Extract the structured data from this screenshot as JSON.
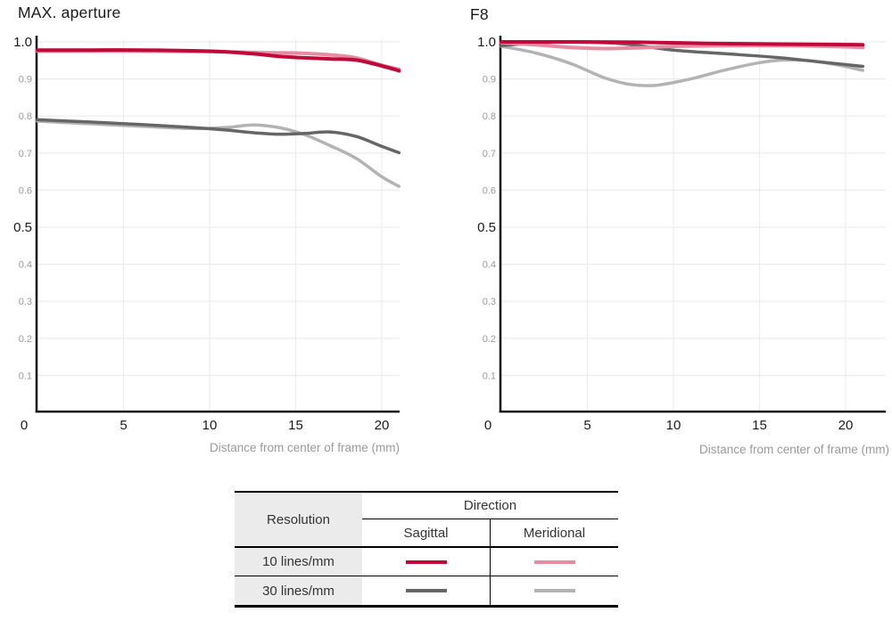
{
  "page_background": "#ffffff",
  "chart_data": [
    {
      "type": "line",
      "title": "MAX. aperture",
      "xlabel": "Distance from center of frame (mm)",
      "xlim": [
        0,
        21.6
      ],
      "ylim": [
        0,
        1.0
      ],
      "grid": true,
      "xticks": [
        {
          "label": "0",
          "mm": 0
        },
        {
          "label": "5",
          "mm": 5
        },
        {
          "label": "10",
          "mm": 10
        },
        {
          "label": "15",
          "mm": 15
        },
        {
          "label": "20",
          "mm": 20
        }
      ],
      "yticks": [
        {
          "label": "1.0",
          "v": 1.0,
          "major": true
        },
        {
          "label": "0.9",
          "v": 0.9
        },
        {
          "label": "0.8",
          "v": 0.8
        },
        {
          "label": "0.7",
          "v": 0.7
        },
        {
          "label": "0.6",
          "v": 0.6
        },
        {
          "label": "0.5",
          "v": 0.5,
          "major": true
        },
        {
          "label": "0.4",
          "v": 0.4
        },
        {
          "label": "0.3",
          "v": 0.3
        },
        {
          "label": "0.2",
          "v": 0.2
        },
        {
          "label": "0.1",
          "v": 0.1
        }
      ],
      "series": [
        {
          "name": "30 lines/mm Meridional",
          "color": "#b3b3b3",
          "width": 3.5,
          "x": [
            0,
            3,
            6,
            9,
            11,
            12.5,
            14,
            15.5,
            17,
            18.5,
            20,
            21
          ],
          "y": [
            0.786,
            0.779,
            0.772,
            0.766,
            0.769,
            0.776,
            0.769,
            0.75,
            0.72,
            0.686,
            0.636,
            0.61
          ]
        },
        {
          "name": "30 lines/mm Sagittal",
          "color": "#666666",
          "width": 3.5,
          "x": [
            0,
            3,
            6,
            9,
            11,
            12.5,
            14,
            15.5,
            17,
            18.5,
            20,
            21
          ],
          "y": [
            0.79,
            0.784,
            0.777,
            0.769,
            0.762,
            0.755,
            0.751,
            0.753,
            0.757,
            0.745,
            0.718,
            0.701
          ]
        },
        {
          "name": "10 lines/mm Meridional",
          "color": "#e78ba3",
          "width": 4,
          "x": [
            0,
            3,
            6,
            9,
            11,
            13,
            15,
            17,
            18.5,
            20,
            21
          ],
          "y": [
            0.975,
            0.975,
            0.975,
            0.974,
            0.973,
            0.971,
            0.97,
            0.965,
            0.957,
            0.937,
            0.926
          ]
        },
        {
          "name": "10 lines/mm Sagittal",
          "color": "#c00939",
          "width": 4,
          "x": [
            0,
            3,
            6,
            9,
            11,
            12.5,
            14,
            15.5,
            17,
            18.5,
            20,
            21
          ],
          "y": [
            0.978,
            0.978,
            0.978,
            0.976,
            0.973,
            0.968,
            0.961,
            0.957,
            0.954,
            0.951,
            0.935,
            0.922
          ]
        }
      ]
    },
    {
      "type": "line",
      "title": "F8",
      "xlabel": "Distance from center of frame (mm)",
      "xlim": [
        0,
        21.6
      ],
      "ylim": [
        0,
        1.0
      ],
      "grid": true,
      "xticks": [
        {
          "label": "0",
          "mm": 0
        },
        {
          "label": "5",
          "mm": 5
        },
        {
          "label": "10",
          "mm": 10
        },
        {
          "label": "15",
          "mm": 15
        },
        {
          "label": "20",
          "mm": 20
        }
      ],
      "yticks": [
        {
          "label": "1.0",
          "v": 1.0,
          "major": true
        },
        {
          "label": "0.9",
          "v": 0.9
        },
        {
          "label": "0.8",
          "v": 0.8
        },
        {
          "label": "0.7",
          "v": 0.7
        },
        {
          "label": "0.6",
          "v": 0.6
        },
        {
          "label": "0.5",
          "v": 0.5,
          "major": true
        },
        {
          "label": "0.4",
          "v": 0.4
        },
        {
          "label": "0.3",
          "v": 0.3
        },
        {
          "label": "0.2",
          "v": 0.2
        },
        {
          "label": "0.1",
          "v": 0.1
        }
      ],
      "series": [
        {
          "name": "30 lines/mm Meridional",
          "color": "#b3b3b3",
          "width": 3.5,
          "x": [
            0,
            2,
            4,
            6,
            7.5,
            9,
            11,
            13,
            15,
            16.5,
            18,
            19.5,
            21
          ],
          "y": [
            0.988,
            0.97,
            0.942,
            0.903,
            0.885,
            0.883,
            0.9,
            0.924,
            0.944,
            0.951,
            0.949,
            0.938,
            0.923
          ]
        },
        {
          "name": "30 lines/mm Sagittal",
          "color": "#666666",
          "width": 3.5,
          "x": [
            0,
            2,
            4,
            7,
            10,
            13,
            16,
            18.5,
            21
          ],
          "y": [
            0.99,
            0.997,
            1.0,
            0.995,
            0.978,
            0.968,
            0.958,
            0.946,
            0.934
          ]
        },
        {
          "name": "10 lines/mm Meridional",
          "color": "#e78ba3",
          "width": 4,
          "x": [
            0,
            2,
            4,
            6,
            8,
            10,
            13,
            16,
            19,
            21
          ],
          "y": [
            0.998,
            0.992,
            0.985,
            0.982,
            0.984,
            0.988,
            0.99,
            0.99,
            0.988,
            0.985
          ]
        },
        {
          "name": "10 lines/mm Sagittal",
          "color": "#c00939",
          "width": 4,
          "x": [
            0,
            4,
            8,
            12,
            16,
            19,
            21
          ],
          "y": [
            1.0,
            1.0,
            0.999,
            0.996,
            0.994,
            0.993,
            0.992
          ]
        }
      ]
    }
  ],
  "legend_table": {
    "resolution_header": "Resolution",
    "direction_header": "Direction",
    "columns": [
      "Sagittal",
      "Meridional"
    ],
    "rows": [
      {
        "label": "10 lines/mm",
        "sagittal_color": "#c00939",
        "meridional_color": "#e78ba3"
      },
      {
        "label": "30 lines/mm",
        "sagittal_color": "#666666",
        "meridional_color": "#b3b3b3"
      }
    ]
  },
  "colors": {
    "axis": "#111111",
    "gridline": "#ececec",
    "tick_major": "#1a1a1a",
    "tick_minor": "#999999",
    "axis_title": "#999999"
  }
}
